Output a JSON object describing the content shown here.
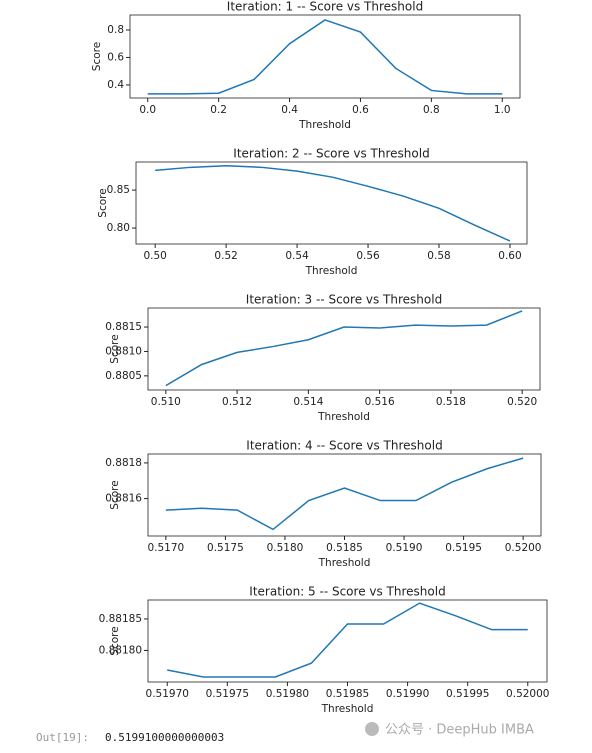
{
  "chart_data": [
    {
      "type": "line",
      "title": "Iteration: 1 -- Score vs Threshold",
      "xlabel": "Threshold",
      "ylabel": "Score",
      "color": "#1f77b4",
      "x": [
        0.0,
        0.1,
        0.2,
        0.3,
        0.4,
        0.5,
        0.6,
        0.7,
        0.8,
        0.9,
        1.0
      ],
      "values": [
        0.335,
        0.335,
        0.34,
        0.44,
        0.7,
        0.873,
        0.785,
        0.52,
        0.36,
        0.335,
        0.335
      ],
      "xlim": [
        -0.05,
        1.05
      ],
      "ylim": [
        0.305,
        0.909
      ],
      "xticks": [
        {
          "value": 0,
          "label": "0.0"
        },
        0.2,
        0.4,
        0.6,
        0.8,
        {
          "value": 1,
          "label": "1.0"
        }
      ],
      "yticks": [
        0.4,
        0.6,
        0.8
      ]
    },
    {
      "type": "line",
      "title": "Iteration: 2 -- Score vs Threshold",
      "xlabel": "Threshold",
      "ylabel": "Score",
      "color": "#1f77b4",
      "x": [
        0.5,
        0.51,
        0.52,
        0.53,
        0.54,
        0.55,
        0.56,
        0.57,
        0.58,
        0.59,
        0.6
      ],
      "values": [
        0.876,
        0.88,
        0.882,
        0.88,
        0.875,
        0.867,
        0.855,
        0.842,
        0.826,
        0.804,
        0.783
      ],
      "xlim": [
        0.4946,
        0.6048
      ],
      "ylim": [
        0.779,
        0.887
      ],
      "xticks": [
        {
          "value": 0.5,
          "label": "0.50"
        },
        0.52,
        0.54,
        0.56,
        0.58,
        {
          "value": 0.6,
          "label": "0.60"
        }
      ],
      "yticks": [
        {
          "value": 0.8,
          "label": "0.80"
        },
        0.85
      ]
    },
    {
      "type": "line",
      "title": "Iteration: 3 -- Score vs Threshold",
      "xlabel": "Threshold",
      "ylabel": "Score",
      "color": "#1f77b4",
      "x": [
        0.51,
        0.511,
        0.512,
        0.513,
        0.514,
        0.515,
        0.516,
        0.517,
        0.518,
        0.519,
        0.52
      ],
      "values": [
        0.8803,
        0.88073,
        0.88098,
        0.8811,
        0.88124,
        0.8815,
        0.88148,
        0.88154,
        0.88152,
        0.88154,
        0.88183
      ],
      "xlim": [
        0.5095,
        0.5205
      ],
      "ylim": [
        0.88021,
        0.88189
      ],
      "xticks": [
        {
          "value": 0.51,
          "label": "0.510"
        },
        0.512,
        0.514,
        0.516,
        0.518,
        {
          "value": 0.52,
          "label": "0.520"
        }
      ],
      "yticks": [
        0.8805,
        {
          "value": 0.881,
          "label": "0.8810"
        },
        0.8815
      ]
    },
    {
      "type": "line",
      "title": "Iteration: 4 -- Score vs Threshold",
      "xlabel": "Threshold",
      "ylabel": "Score",
      "color": "#1f77b4",
      "x": [
        0.517,
        0.5173,
        0.5176,
        0.5179,
        0.5182,
        0.5185,
        0.5188,
        0.5191,
        0.5194,
        0.5197,
        0.52
      ],
      "values": [
        0.881535,
        0.881546,
        0.881535,
        0.881427,
        0.881589,
        0.881659,
        0.881589,
        0.881589,
        0.881692,
        0.881768,
        0.881827
      ],
      "xlim": [
        0.51685,
        0.52015
      ],
      "ylim": [
        0.88139,
        0.88185
      ],
      "xticks": [
        {
          "value": 0.517,
          "label": "0.5170"
        },
        0.5175,
        {
          "value": 0.518,
          "label": "0.5180"
        },
        0.5185,
        {
          "value": 0.519,
          "label": "0.5190"
        },
        0.5195,
        {
          "value": 0.52,
          "label": "0.5200"
        }
      ],
      "yticks": [
        0.8816,
        0.8818
      ]
    },
    {
      "type": "line",
      "title": "Iteration: 5 -- Score vs Threshold",
      "xlabel": "Threshold",
      "ylabel": "Score",
      "color": "#1f77b4",
      "x": [
        0.5197,
        0.51973,
        0.51976,
        0.51979,
        0.51982,
        0.51985,
        0.51988,
        0.51991,
        0.51994,
        0.51997,
        0.52
      ],
      "values": [
        0.881769,
        0.881758,
        0.881758,
        0.881758,
        0.88178,
        0.881842,
        0.881842,
        0.881875,
        0.881855,
        0.881833,
        0.881833
      ],
      "xlim": [
        0.519684,
        0.520016
      ],
      "ylim": [
        0.88175,
        0.88188
      ],
      "xticks": [
        {
          "value": 0.5197,
          "label": "0.51970"
        },
        0.51975,
        {
          "value": 0.5198,
          "label": "0.51980"
        },
        0.51985,
        {
          "value": 0.5199,
          "label": "0.51990"
        },
        0.51995,
        {
          "value": 0.52,
          "label": "0.52000"
        }
      ],
      "yticks": [
        {
          "value": 0.8818,
          "label": "0.88180"
        },
        0.88185
      ]
    }
  ],
  "output": {
    "prompt": "Out[19]:",
    "value": "0.5199100000000003"
  },
  "watermark": "公众号 · DeepHub IMBA"
}
